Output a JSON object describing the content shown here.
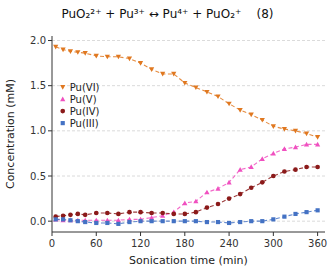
{
  "chart_data": {
    "type": "line",
    "title": "PuO₂²⁺ + Pu³⁺ ↔ Pu⁴⁺ + PuO₂⁺    (8)",
    "x_label": "Sonication time (min)",
    "y_label": "Concentration (mM)",
    "xlim": [
      0,
      370
    ],
    "ylim": [
      -0.12,
      2.05
    ],
    "xticks": [
      0,
      60,
      120,
      180,
      240,
      300,
      360
    ],
    "yticks": [
      {
        "value": 0.0,
        "label": "0.0"
      },
      0.5,
      {
        "value": 1.0,
        "label": "1.0"
      },
      1.5,
      {
        "value": 2.0,
        "label": "2.0"
      }
    ],
    "grid": true,
    "legend": "upper left",
    "x": [
      5,
      15,
      25,
      35,
      45,
      60,
      75,
      90,
      105,
      120,
      135,
      150,
      165,
      180,
      195,
      210,
      225,
      240,
      255,
      270,
      285,
      300,
      315,
      330,
      345,
      360
    ],
    "series": [
      {
        "name": "Pu(VI)",
        "color": "#e07820",
        "marker": "triangle-down",
        "line_style": "dashed",
        "values": [
          1.93,
          1.9,
          1.88,
          1.87,
          1.86,
          1.83,
          1.82,
          1.82,
          1.8,
          1.75,
          1.68,
          1.63,
          1.63,
          1.53,
          1.48,
          1.43,
          1.38,
          1.3,
          1.23,
          1.18,
          1.12,
          1.05,
          1.02,
          1.0,
          0.97,
          0.93
        ]
      },
      {
        "name": "Pu(V)",
        "color": "#f050c0",
        "marker": "triangle-up",
        "line_style": "dashed",
        "values": [
          0.02,
          0.01,
          0.01,
          0.01,
          0.01,
          0.01,
          0.01,
          0.01,
          0.02,
          0.02,
          0.04,
          0.06,
          0.1,
          0.2,
          0.22,
          0.32,
          0.36,
          0.43,
          0.57,
          0.6,
          0.69,
          0.75,
          0.8,
          0.82,
          0.85,
          0.85
        ]
      },
      {
        "name": "Pu(IV)",
        "color": "#8b1a1a",
        "marker": "circle",
        "line_style": "dashed",
        "values": [
          0.05,
          0.06,
          0.07,
          0.08,
          0.07,
          0.09,
          0.09,
          0.08,
          0.1,
          0.1,
          0.09,
          0.09,
          0.08,
          0.08,
          0.1,
          0.15,
          0.19,
          0.25,
          0.3,
          0.37,
          0.43,
          0.5,
          0.55,
          0.57,
          0.6,
          0.6
        ]
      },
      {
        "name": "Pu(III)",
        "color": "#4472c4",
        "marker": "square",
        "line_style": "dashed",
        "values": [
          0.02,
          0.02,
          0.01,
          0.0,
          -0.01,
          -0.02,
          -0.02,
          -0.03,
          -0.01,
          0.0,
          0.0,
          0.0,
          0.0,
          0.0,
          0.0,
          -0.01,
          -0.01,
          -0.02,
          -0.01,
          0.0,
          0.0,
          0.02,
          0.05,
          0.08,
          0.1,
          0.12
        ]
      }
    ]
  }
}
